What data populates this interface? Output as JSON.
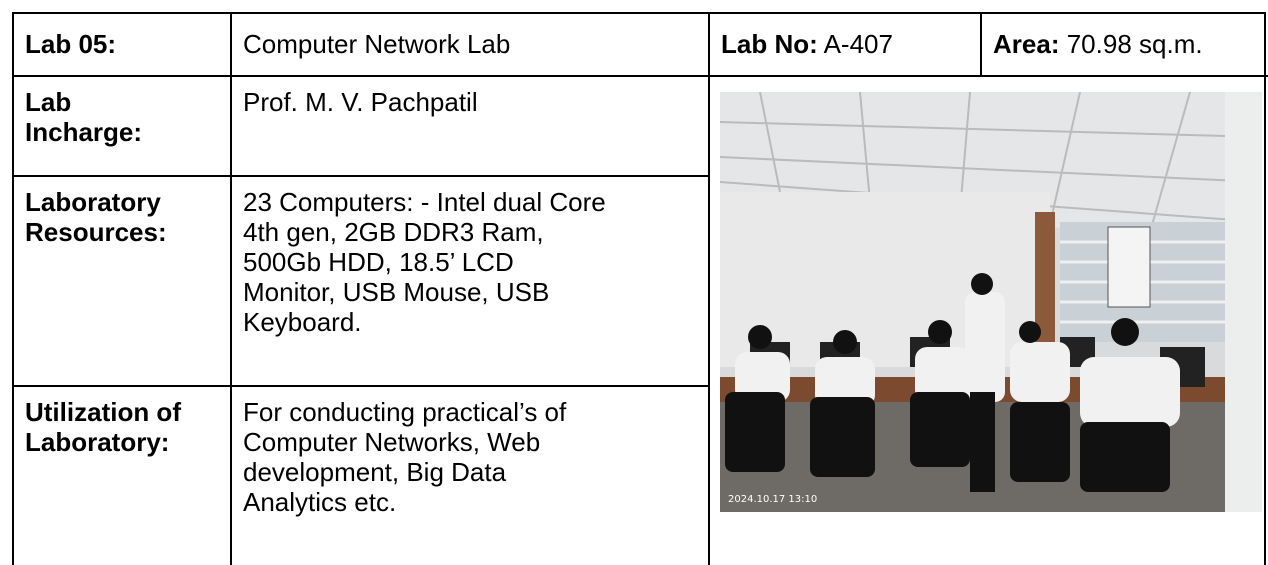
{
  "header": {
    "lab": "Lab 05:",
    "name": "Computer Network Lab",
    "lab_no_label": "Lab No:",
    "lab_no": "A-407",
    "area_label": "Area:",
    "area": "70.98 sq.m."
  },
  "rows": [
    {
      "label": [
        "Lab",
        "Incharge:"
      ],
      "value": [
        "Prof. M. V. Pachpatil"
      ]
    },
    {
      "label": [
        "Laboratory",
        "Resources:"
      ],
      "value": [
        "23 Computers: - Intel dual Core",
        "4th gen, 2GB DDR3 Ram,",
        "500Gb HDD, 18.5’ LCD",
        "Monitor, USB Mouse, USB",
        "Keyboard."
      ]
    },
    {
      "label": [
        "Utilization of",
        "Laboratory:"
      ],
      "value": [
        "For conducting practical’s of",
        "Computer Networks, Web",
        "development, Big Data",
        "Analytics etc."
      ]
    }
  ],
  "photo": {
    "timestamp": "2024.10.17 13:10"
  }
}
